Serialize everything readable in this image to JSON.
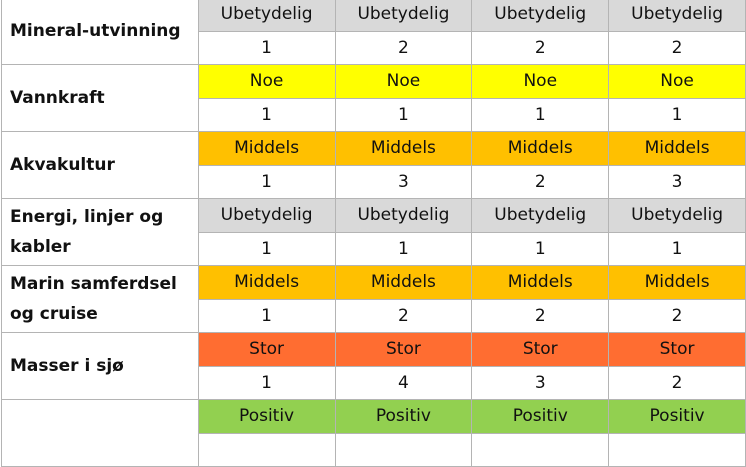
{
  "colors": {
    "Ubetydelig": "#d9d9d9",
    "Noe": "#ffff00",
    "Middels": "#ffc000",
    "Stor": "#ff6d31",
    "Positiv": "#92d050"
  },
  "rows": [
    {
      "name": "Mineral-utvinning",
      "level": [
        "Ubetydelig",
        "Ubetydelig",
        "Ubetydelig",
        "Ubetydelig"
      ],
      "scores": [
        "1",
        "2",
        "2",
        "2"
      ]
    },
    {
      "name": "Vannkraft",
      "level": [
        "Noe",
        "Noe",
        "Noe",
        "Noe"
      ],
      "scores": [
        "1",
        "1",
        "1",
        "1"
      ]
    },
    {
      "name": "Akvakultur",
      "level": [
        "Middels",
        "Middels",
        "Middels",
        "Middels"
      ],
      "scores": [
        "1",
        "3",
        "2",
        "3"
      ]
    },
    {
      "name": "Energi, linjer og kabler",
      "level": [
        "Ubetydelig",
        "Ubetydelig",
        "Ubetydelig",
        "Ubetydelig"
      ],
      "scores": [
        "1",
        "1",
        "1",
        "1"
      ]
    },
    {
      "name": "Marin samferdsel og cruise",
      "level": [
        "Middels",
        "Middels",
        "Middels",
        "Middels"
      ],
      "scores": [
        "1",
        "2",
        "2",
        "2"
      ]
    },
    {
      "name": "Masser i sjø",
      "level": [
        "Stor",
        "Stor",
        "Stor",
        "Stor"
      ],
      "scores": [
        "1",
        "4",
        "3",
        "2"
      ]
    },
    {
      "name": "",
      "level": [
        "Positiv",
        "Positiv",
        "Positiv",
        "Positiv"
      ],
      "scores": [
        "",
        "",
        "",
        ""
      ]
    }
  ]
}
